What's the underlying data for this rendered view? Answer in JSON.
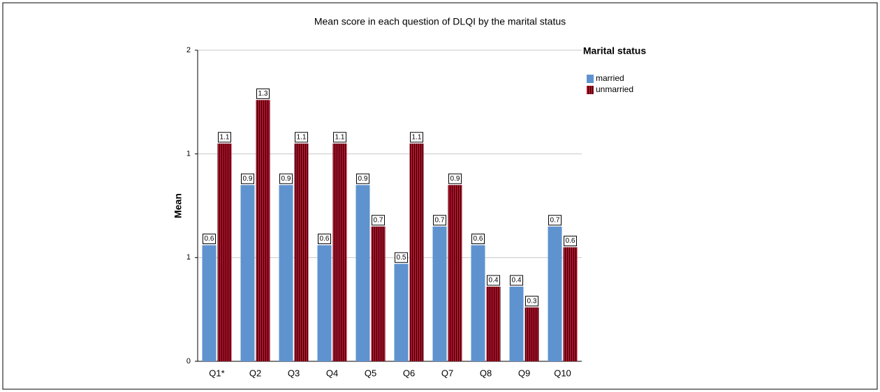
{
  "chart_data": {
    "type": "bar",
    "title": "Mean score in each question of DLQI by the marital status",
    "y_label": "Mean",
    "legend_title": "Marital status",
    "legend_position": "right",
    "categories": [
      "Q1*",
      "Q2",
      "Q3",
      "Q4",
      "Q5",
      "Q6",
      "Q7",
      "Q8",
      "Q9",
      "Q10"
    ],
    "series": [
      {
        "name": "married",
        "color": "#5f93cf",
        "values": [
          0.56,
          0.85,
          0.85,
          0.56,
          0.85,
          0.47,
          0.65,
          0.56,
          0.36,
          0.65
        ],
        "value_labels": [
          "0.6",
          "0.9",
          "0.9",
          "0.6",
          "0.9",
          "0.5",
          "0.7",
          "0.6",
          "0.4",
          "0.7"
        ]
      },
      {
        "name": "unmarried",
        "color": "#b01028",
        "values": [
          1.05,
          1.26,
          1.05,
          1.05,
          0.65,
          1.05,
          0.85,
          0.36,
          0.26,
          0.55
        ],
        "value_labels": [
          "1.1",
          "1.3",
          "1.1",
          "1.1",
          "0.7",
          "1.1",
          "0.9",
          "0.4",
          "0.3",
          "0.6"
        ]
      }
    ],
    "ylim": [
      0,
      1.5
    ],
    "yticks": [
      0,
      {
        "value": 0.5,
        "label": "1"
      },
      1,
      {
        "value": 1.5,
        "label": "2"
      }
    ],
    "grid": true
  }
}
